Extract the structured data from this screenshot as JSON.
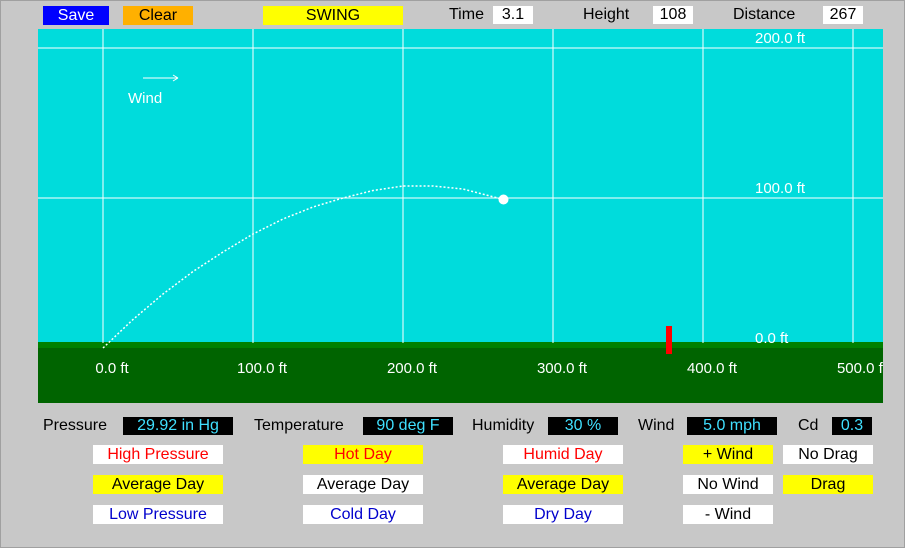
{
  "toolbar": {
    "save": "Save",
    "clear": "Clear",
    "swing": "SWING",
    "time_label": "Time",
    "time": "3.1",
    "height_label": "Height",
    "height": "108",
    "distance_label": "Distance",
    "distance": "267"
  },
  "plot": {
    "wind_label": "Wind",
    "x_ticks": [
      "0.0 ft",
      "100.0 ft",
      "200.0 ft",
      "300.0 ft",
      "400.0 ft",
      "500.0 ft"
    ],
    "y_ticks": [
      "0.0 ft",
      "100.0 ft",
      "200.0 ft"
    ],
    "trajectory": {
      "x": [
        0,
        20,
        40,
        60,
        80,
        100,
        120,
        140,
        160,
        180,
        200,
        220,
        240,
        267
      ],
      "y": [
        0,
        19,
        36,
        51,
        64,
        76,
        86,
        94,
        100,
        105,
        108,
        108,
        106,
        99
      ]
    }
  },
  "conditions": [
    {
      "label": "Pressure",
      "value": "29.92 in Hg"
    },
    {
      "label": "Temperature",
      "value": "90 deg F"
    },
    {
      "label": "Humidity",
      "value": "30 %"
    },
    {
      "label": "Wind",
      "value": "5.0 mph"
    },
    {
      "label": "Cd",
      "value": "0.3"
    }
  ],
  "presets": [
    [
      "High Pressure",
      "Average Day",
      "Low Pressure"
    ],
    [
      "Hot Day",
      "Average Day",
      "Cold Day"
    ],
    [
      "Humid Day",
      "Average Day",
      "Dry Day"
    ],
    [
      "+ Wind",
      "No Wind",
      "- Wind"
    ],
    [
      "No Drag",
      "Drag"
    ]
  ]
}
